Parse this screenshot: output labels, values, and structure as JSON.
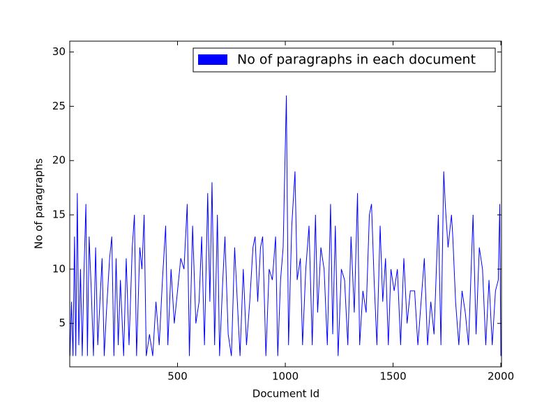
{
  "chart_data": {
    "type": "line",
    "xlabel": "Document Id",
    "ylabel": "No of paragraphs",
    "x": [
      1,
      8,
      15,
      22,
      28,
      35,
      42,
      50,
      58,
      65,
      72,
      75,
      82,
      90,
      100,
      110,
      120,
      130,
      140,
      150,
      160,
      170,
      185,
      195,
      205,
      215,
      225,
      235,
      250,
      262,
      275,
      290,
      300,
      310,
      325,
      335,
      345,
      355,
      370,
      385,
      400,
      415,
      430,
      445,
      455,
      470,
      485,
      500,
      515,
      530,
      545,
      555,
      570,
      585,
      600,
      612,
      625,
      640,
      650,
      660,
      672,
      685,
      695,
      710,
      720,
      735,
      750,
      765,
      775,
      790,
      805,
      820,
      835,
      850,
      860,
      872,
      885,
      895,
      910,
      925,
      940,
      955,
      965,
      978,
      990,
      1005,
      1015,
      1030,
      1045,
      1055,
      1070,
      1080,
      1095,
      1110,
      1125,
      1140,
      1150,
      1165,
      1180,
      1195,
      1210,
      1220,
      1232,
      1245,
      1260,
      1275,
      1290,
      1305,
      1320,
      1335,
      1345,
      1360,
      1375,
      1390,
      1400,
      1412,
      1425,
      1440,
      1452,
      1465,
      1478,
      1490,
      1505,
      1520,
      1535,
      1550,
      1565,
      1580,
      1600,
      1615,
      1630,
      1645,
      1660,
      1675,
      1690,
      1710,
      1722,
      1735,
      1742,
      1755,
      1771,
      1777,
      1790,
      1805,
      1820,
      1835,
      1850,
      1871,
      1885,
      1900,
      1915,
      1930,
      1945,
      1960,
      1975,
      1988,
      1995,
      2000
    ],
    "series": [
      {
        "name": "No of paragraphs in each document",
        "color": "#0000ff",
        "values": [
          2,
          7,
          2,
          13,
          2,
          17,
          3,
          10,
          2,
          9,
          14,
          16,
          2,
          13,
          8,
          2,
          12,
          3,
          7,
          11,
          2,
          6,
          11,
          13,
          2,
          11,
          3,
          9,
          2,
          11,
          3,
          12,
          15,
          2,
          12,
          10,
          15,
          2,
          4,
          2,
          7,
          3,
          9,
          14,
          3,
          10,
          5,
          8,
          11,
          10,
          16,
          2,
          14,
          5,
          7,
          13,
          3,
          17,
          7,
          18,
          3,
          15,
          2,
          9,
          13,
          4,
          2,
          12,
          8,
          2,
          10,
          3,
          7,
          12,
          13,
          7,
          12,
          13,
          2,
          10,
          9,
          13,
          2,
          9,
          12,
          26,
          3,
          14,
          19,
          9,
          11,
          3,
          10,
          14,
          3,
          15,
          6,
          12,
          10,
          3,
          16,
          4,
          14,
          2,
          10,
          9,
          3,
          13,
          6,
          17,
          3,
          8,
          6,
          15,
          16,
          9,
          3,
          14,
          7,
          11,
          3,
          10,
          8,
          10,
          3,
          11,
          5,
          8,
          8,
          3,
          7,
          11,
          3,
          7,
          4,
          15,
          3,
          19,
          16,
          12,
          15,
          13,
          7,
          3,
          8,
          6,
          3,
          15,
          4,
          12,
          10,
          3,
          9,
          3,
          8,
          9,
          16,
          2
        ]
      }
    ],
    "xlim": [
      0,
      2003
    ],
    "ylim": [
      1,
      31
    ],
    "xticks": [
      500,
      1000,
      1500,
      2000
    ],
    "yticks": [
      5,
      10,
      15,
      20,
      25,
      30
    ],
    "legend": "upper right"
  }
}
